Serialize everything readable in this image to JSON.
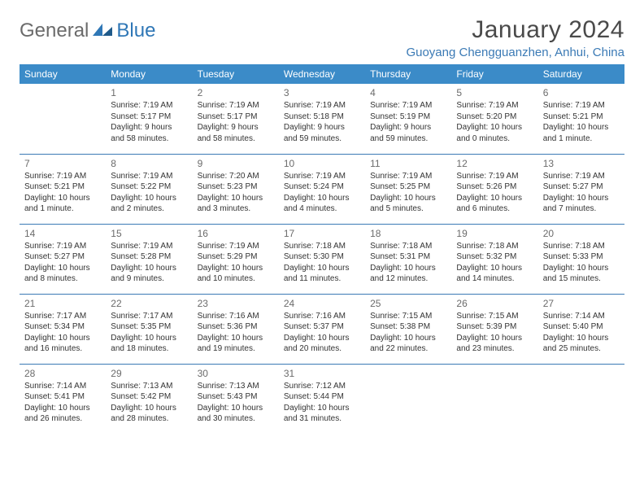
{
  "brand": {
    "general": "General",
    "blue": "Blue"
  },
  "month_title": "January 2024",
  "location": "Guoyang Chengguanzhen, Anhui, China",
  "colors": {
    "header_bg": "#3b8bc8",
    "header_text": "#ffffff",
    "accent": "#3b7ab5",
    "body_text": "#333333",
    "daynum": "#6b6b6b",
    "logo_gray": "#6b6b6b"
  },
  "weekdays": [
    "Sunday",
    "Monday",
    "Tuesday",
    "Wednesday",
    "Thursday",
    "Friday",
    "Saturday"
  ],
  "weeks": [
    [
      null,
      {
        "n": "1",
        "sr": "Sunrise: 7:19 AM",
        "ss": "Sunset: 5:17 PM",
        "dl": "Daylight: 9 hours and 58 minutes."
      },
      {
        "n": "2",
        "sr": "Sunrise: 7:19 AM",
        "ss": "Sunset: 5:17 PM",
        "dl": "Daylight: 9 hours and 58 minutes."
      },
      {
        "n": "3",
        "sr": "Sunrise: 7:19 AM",
        "ss": "Sunset: 5:18 PM",
        "dl": "Daylight: 9 hours and 59 minutes."
      },
      {
        "n": "4",
        "sr": "Sunrise: 7:19 AM",
        "ss": "Sunset: 5:19 PM",
        "dl": "Daylight: 9 hours and 59 minutes."
      },
      {
        "n": "5",
        "sr": "Sunrise: 7:19 AM",
        "ss": "Sunset: 5:20 PM",
        "dl": "Daylight: 10 hours and 0 minutes."
      },
      {
        "n": "6",
        "sr": "Sunrise: 7:19 AM",
        "ss": "Sunset: 5:21 PM",
        "dl": "Daylight: 10 hours and 1 minute."
      }
    ],
    [
      {
        "n": "7",
        "sr": "Sunrise: 7:19 AM",
        "ss": "Sunset: 5:21 PM",
        "dl": "Daylight: 10 hours and 1 minute."
      },
      {
        "n": "8",
        "sr": "Sunrise: 7:19 AM",
        "ss": "Sunset: 5:22 PM",
        "dl": "Daylight: 10 hours and 2 minutes."
      },
      {
        "n": "9",
        "sr": "Sunrise: 7:20 AM",
        "ss": "Sunset: 5:23 PM",
        "dl": "Daylight: 10 hours and 3 minutes."
      },
      {
        "n": "10",
        "sr": "Sunrise: 7:19 AM",
        "ss": "Sunset: 5:24 PM",
        "dl": "Daylight: 10 hours and 4 minutes."
      },
      {
        "n": "11",
        "sr": "Sunrise: 7:19 AM",
        "ss": "Sunset: 5:25 PM",
        "dl": "Daylight: 10 hours and 5 minutes."
      },
      {
        "n": "12",
        "sr": "Sunrise: 7:19 AM",
        "ss": "Sunset: 5:26 PM",
        "dl": "Daylight: 10 hours and 6 minutes."
      },
      {
        "n": "13",
        "sr": "Sunrise: 7:19 AM",
        "ss": "Sunset: 5:27 PM",
        "dl": "Daylight: 10 hours and 7 minutes."
      }
    ],
    [
      {
        "n": "14",
        "sr": "Sunrise: 7:19 AM",
        "ss": "Sunset: 5:27 PM",
        "dl": "Daylight: 10 hours and 8 minutes."
      },
      {
        "n": "15",
        "sr": "Sunrise: 7:19 AM",
        "ss": "Sunset: 5:28 PM",
        "dl": "Daylight: 10 hours and 9 minutes."
      },
      {
        "n": "16",
        "sr": "Sunrise: 7:19 AM",
        "ss": "Sunset: 5:29 PM",
        "dl": "Daylight: 10 hours and 10 minutes."
      },
      {
        "n": "17",
        "sr": "Sunrise: 7:18 AM",
        "ss": "Sunset: 5:30 PM",
        "dl": "Daylight: 10 hours and 11 minutes."
      },
      {
        "n": "18",
        "sr": "Sunrise: 7:18 AM",
        "ss": "Sunset: 5:31 PM",
        "dl": "Daylight: 10 hours and 12 minutes."
      },
      {
        "n": "19",
        "sr": "Sunrise: 7:18 AM",
        "ss": "Sunset: 5:32 PM",
        "dl": "Daylight: 10 hours and 14 minutes."
      },
      {
        "n": "20",
        "sr": "Sunrise: 7:18 AM",
        "ss": "Sunset: 5:33 PM",
        "dl": "Daylight: 10 hours and 15 minutes."
      }
    ],
    [
      {
        "n": "21",
        "sr": "Sunrise: 7:17 AM",
        "ss": "Sunset: 5:34 PM",
        "dl": "Daylight: 10 hours and 16 minutes."
      },
      {
        "n": "22",
        "sr": "Sunrise: 7:17 AM",
        "ss": "Sunset: 5:35 PM",
        "dl": "Daylight: 10 hours and 18 minutes."
      },
      {
        "n": "23",
        "sr": "Sunrise: 7:16 AM",
        "ss": "Sunset: 5:36 PM",
        "dl": "Daylight: 10 hours and 19 minutes."
      },
      {
        "n": "24",
        "sr": "Sunrise: 7:16 AM",
        "ss": "Sunset: 5:37 PM",
        "dl": "Daylight: 10 hours and 20 minutes."
      },
      {
        "n": "25",
        "sr": "Sunrise: 7:15 AM",
        "ss": "Sunset: 5:38 PM",
        "dl": "Daylight: 10 hours and 22 minutes."
      },
      {
        "n": "26",
        "sr": "Sunrise: 7:15 AM",
        "ss": "Sunset: 5:39 PM",
        "dl": "Daylight: 10 hours and 23 minutes."
      },
      {
        "n": "27",
        "sr": "Sunrise: 7:14 AM",
        "ss": "Sunset: 5:40 PM",
        "dl": "Daylight: 10 hours and 25 minutes."
      }
    ],
    [
      {
        "n": "28",
        "sr": "Sunrise: 7:14 AM",
        "ss": "Sunset: 5:41 PM",
        "dl": "Daylight: 10 hours and 26 minutes."
      },
      {
        "n": "29",
        "sr": "Sunrise: 7:13 AM",
        "ss": "Sunset: 5:42 PM",
        "dl": "Daylight: 10 hours and 28 minutes."
      },
      {
        "n": "30",
        "sr": "Sunrise: 7:13 AM",
        "ss": "Sunset: 5:43 PM",
        "dl": "Daylight: 10 hours and 30 minutes."
      },
      {
        "n": "31",
        "sr": "Sunrise: 7:12 AM",
        "ss": "Sunset: 5:44 PM",
        "dl": "Daylight: 10 hours and 31 minutes."
      },
      null,
      null,
      null
    ]
  ]
}
